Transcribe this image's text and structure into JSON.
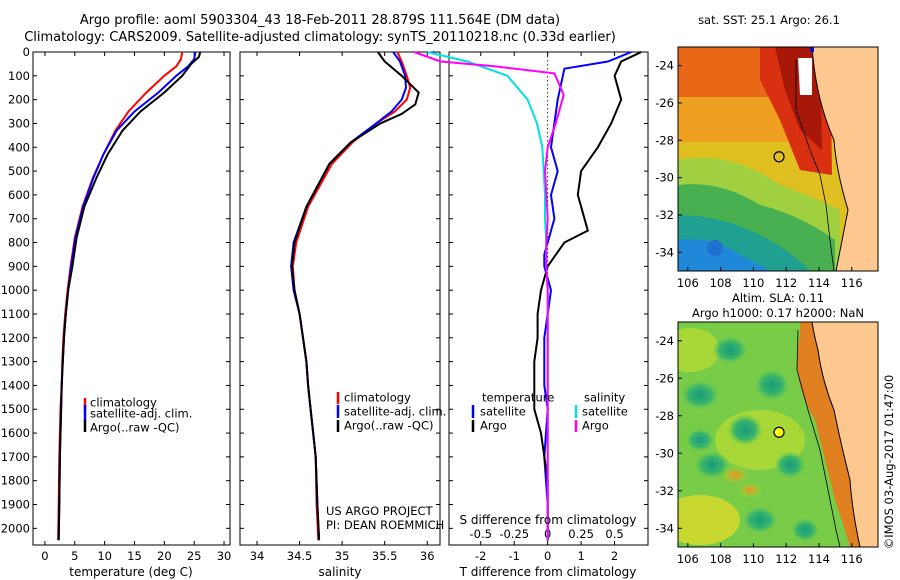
{
  "header": {
    "line1": "Argo profile: aoml 5903304_43 18-Feb-2011 28.879S 111.564E (DM data)",
    "line2": "Climatology: CARS2009. Satellite-adjusted climatology: synTS_20110218.nc (0.33d earlier)"
  },
  "chart_data": [
    {
      "type": "line",
      "name": "temperature-profile",
      "xlabel": "temperature (deg C)",
      "xlim": [
        -2,
        31
      ],
      "ylim": [
        2070,
        0
      ],
      "xticks": [
        0,
        5,
        10,
        15,
        20,
        25,
        30
      ],
      "yticks": [
        0,
        100,
        200,
        300,
        400,
        500,
        600,
        700,
        800,
        900,
        1000,
        1100,
        1200,
        1300,
        1400,
        1500,
        1600,
        1700,
        1800,
        1900,
        2000
      ],
      "legend": [
        "climatology",
        "satellite-adj. clim.",
        "Argo(..raw -QC)"
      ],
      "series": [
        {
          "name": "climatology",
          "color": "#ff0000",
          "x": [
            23.0,
            22.8,
            22.0,
            20.0,
            17.0,
            14.0,
            11.8,
            9.8,
            8.0,
            6.3,
            5.0,
            4.3,
            3.8,
            3.4,
            3.1,
            2.9,
            2.8,
            2.6,
            2.5,
            2.4,
            2.3,
            2.2
          ],
          "y": [
            0,
            30,
            60,
            100,
            170,
            250,
            330,
            430,
            530,
            650,
            780,
            900,
            1000,
            1100,
            1200,
            1300,
            1400,
            1500,
            1600,
            1700,
            1900,
            2050
          ]
        },
        {
          "name": "satellite-adj. clim.",
          "color": "#0000ff",
          "x": [
            25.2,
            25.0,
            24.0,
            22.0,
            19.0,
            15.0,
            12.0,
            9.8,
            8.1,
            6.4,
            5.1,
            4.4,
            3.9,
            3.5,
            3.2,
            3.0,
            2.8,
            2.7,
            2.6,
            2.5,
            2.4,
            2.3
          ],
          "y": [
            0,
            30,
            60,
            100,
            170,
            250,
            330,
            430,
            530,
            650,
            780,
            900,
            1000,
            1100,
            1200,
            1300,
            1400,
            1500,
            1600,
            1700,
            1900,
            2050
          ]
        },
        {
          "name": "Argo(..raw -QC)",
          "color": "#000000",
          "x": [
            26.0,
            25.8,
            24.5,
            23.0,
            20.0,
            16.0,
            13.0,
            10.5,
            8.6,
            6.6,
            5.3,
            4.6,
            3.9,
            3.5,
            3.2,
            3.0,
            2.8,
            2.7,
            2.6,
            2.5,
            2.4,
            2.3
          ],
          "y": [
            0,
            20,
            50,
            100,
            170,
            250,
            330,
            430,
            530,
            650,
            780,
            900,
            1000,
            1100,
            1200,
            1300,
            1400,
            1500,
            1600,
            1700,
            1900,
            2050
          ]
        }
      ]
    },
    {
      "type": "line",
      "name": "salinity-profile",
      "xlabel": "salinity",
      "xlim": [
        33.8,
        36.15
      ],
      "ylim": [
        2070,
        0
      ],
      "xticks": [
        34,
        34.5,
        35,
        35.5,
        36
      ],
      "legend": [
        "climatology",
        "satellite-adj. clim.",
        "Argo(..raw -QC)"
      ],
      "annotation": [
        "US ARGO PROJECT",
        "PI: DEAN ROEMMICH"
      ],
      "series": [
        {
          "name": "climatology",
          "color": "#ff0000",
          "x": [
            35.65,
            35.7,
            35.76,
            35.8,
            35.76,
            35.62,
            35.4,
            35.12,
            34.88,
            34.6,
            34.46,
            34.42,
            34.44,
            34.5,
            34.54,
            34.58,
            34.6,
            34.63,
            34.66,
            34.69,
            34.7,
            34.72
          ],
          "y": [
            0,
            40,
            100,
            150,
            200,
            250,
            300,
            380,
            470,
            650,
            800,
            900,
            1000,
            1100,
            1200,
            1300,
            1400,
            1500,
            1600,
            1700,
            1900,
            2050
          ]
        },
        {
          "name": "satellite-adj. clim.",
          "color": "#0000ff",
          "x": [
            35.6,
            35.68,
            35.74,
            35.75,
            35.7,
            35.58,
            35.4,
            35.1,
            34.85,
            34.58,
            34.43,
            34.4,
            34.43,
            34.5,
            34.54,
            34.58,
            34.6,
            34.63,
            34.66,
            34.69,
            34.71,
            34.73
          ],
          "y": [
            0,
            40,
            100,
            150,
            200,
            250,
            300,
            380,
            470,
            650,
            800,
            900,
            1000,
            1100,
            1200,
            1300,
            1400,
            1500,
            1600,
            1700,
            1900,
            2050
          ]
        },
        {
          "name": "Argo(..raw -QC)",
          "color": "#000000",
          "x": [
            35.42,
            35.5,
            35.7,
            35.9,
            35.86,
            35.7,
            35.45,
            35.1,
            34.85,
            34.58,
            34.44,
            34.41,
            34.44,
            34.5,
            34.54,
            34.58,
            34.6,
            34.63,
            34.66,
            34.69,
            34.71,
            34.73
          ],
          "y": [
            0,
            40,
            100,
            170,
            220,
            260,
            300,
            380,
            470,
            650,
            800,
            900,
            1000,
            1100,
            1200,
            1300,
            1400,
            1500,
            1600,
            1700,
            1900,
            2050
          ]
        }
      ]
    },
    {
      "type": "line",
      "name": "difference-from-climatology",
      "xlabel": "T difference from climatology",
      "x2label": "S difference from climatology",
      "xlim": [
        -2.95,
        3.0
      ],
      "ylim": [
        2070,
        0
      ],
      "xticks": [
        -2,
        -1,
        0,
        1,
        2
      ],
      "x2ticks": [
        -0.5,
        -0.25,
        0,
        0.25,
        0.5
      ],
      "legend": {
        "temperature": [
          "satellite",
          "Argo"
        ],
        "salinity": [
          "satellite",
          "Argo"
        ],
        "temperature_title": "temperature",
        "salinity_title": "salinity"
      },
      "series": [
        {
          "name": "temperature satellite",
          "color": "#0000ff",
          "x": [
            2.5,
            1.8,
            0.5,
            0.3,
            0.1,
            0.3,
            0.1,
            0.2,
            0.0,
            -0.1,
            -0.1,
            0.1,
            0.0,
            -0.1,
            -0.1,
            -0.1,
            0.0,
            -0.1,
            0.0,
            0.0
          ],
          "y": [
            0,
            40,
            70,
            200,
            400,
            500,
            600,
            700,
            800,
            850,
            900,
            1000,
            1100,
            1200,
            1300,
            1400,
            1500,
            1700,
            1900,
            2050
          ]
        },
        {
          "name": "temperature Argo",
          "color": "#000000",
          "x": [
            2.8,
            2.2,
            2.0,
            2.2,
            1.9,
            1.5,
            1.0,
            0.9,
            1.1,
            1.2,
            0.5,
            0.0,
            -0.2,
            -0.3,
            -0.3,
            -0.4,
            -0.4,
            -0.4,
            -0.2,
            0.0,
            0.0
          ],
          "y": [
            0,
            40,
            100,
            200,
            300,
            400,
            500,
            600,
            700,
            750,
            800,
            900,
            1000,
            1100,
            1200,
            1300,
            1400,
            1500,
            1600,
            1800,
            2050
          ]
        },
        {
          "name": "salinity satellite",
          "color": "#00e0e0",
          "x": [
            -0.9,
            -0.6,
            -0.3,
            -0.15,
            -0.08,
            -0.04,
            -0.03,
            -0.02,
            -0.02,
            -0.01,
            -0.01,
            0.0,
            0.0,
            0.0,
            0.0,
            0.0,
            0.0
          ],
          "y": [
            0,
            40,
            100,
            200,
            300,
            400,
            500,
            600,
            700,
            800,
            900,
            1000,
            1200,
            1400,
            1600,
            1800,
            2050
          ]
        },
        {
          "name": "salinity Argo",
          "color": "#ff00ff",
          "x": [
            -1.0,
            -0.8,
            -0.4,
            0.05,
            0.12,
            0.06,
            0.0,
            -0.02,
            0.0,
            -0.01,
            -0.01,
            0.0,
            0.0,
            0.0,
            0.0,
            0.0
          ],
          "y": [
            0,
            40,
            60,
            90,
            180,
            300,
            400,
            500,
            700,
            800,
            900,
            1000,
            1200,
            1400,
            1700,
            2050
          ]
        }
      ]
    },
    {
      "type": "heatmap",
      "name": "sst-map",
      "title": "sat. SST: 25.1 Argo: 26.1",
      "xticks": [
        106,
        108,
        110,
        112,
        114,
        116
      ],
      "yticks": [
        -24,
        -26,
        -28,
        -30,
        -32,
        -34
      ],
      "xlim": [
        105.4,
        117.6
      ],
      "ylim": [
        -35.0,
        -23.0
      ],
      "argo_position": {
        "lon": 111.564,
        "lat": -28.879
      }
    },
    {
      "type": "heatmap",
      "name": "altimetry-map",
      "title": [
        "Altim. SLA: 0.11",
        "Argo h1000: 0.17 h2000: NaN"
      ],
      "xticks": [
        106,
        108,
        110,
        112,
        114,
        116
      ],
      "yticks": [
        -24,
        -26,
        -28,
        -30,
        -32,
        -34
      ],
      "xlim": [
        105.4,
        117.6
      ],
      "ylim": [
        -35.0,
        -23.0
      ],
      "argo_position": {
        "lon": 111.564,
        "lat": -28.879
      }
    }
  ],
  "footer": {
    "stamp": "©IMOS 03-Aug-2017 01:47:00"
  }
}
